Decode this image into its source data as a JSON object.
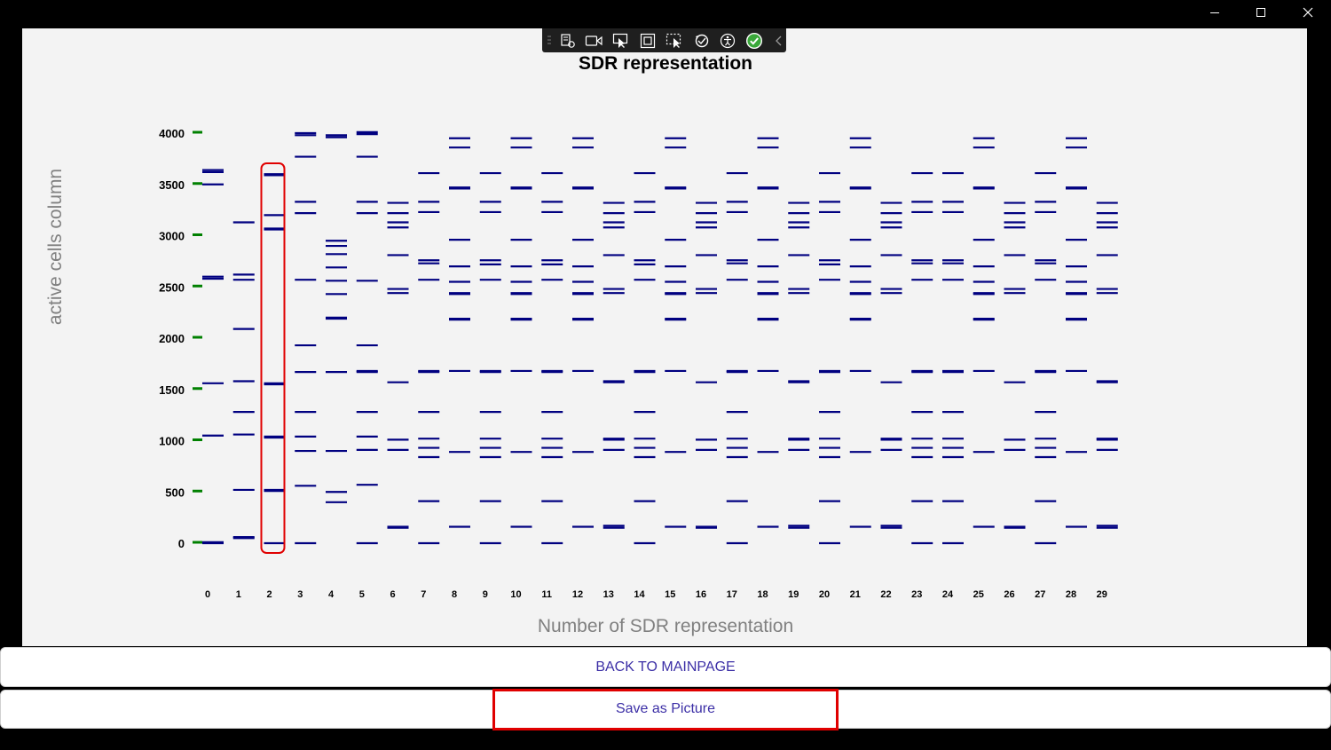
{
  "window": {
    "controls": [
      "minimize-icon",
      "maximize-icon",
      "close-icon"
    ]
  },
  "toolbar": {
    "icons": [
      "live-visual-tree-icon",
      "record-icon",
      "select-element-icon",
      "display-layout-adorners-icon",
      "track-focus-icon",
      "hot-reload-icon",
      "accessibility-icon",
      "check-icon",
      "collapse-chevron-icon"
    ],
    "check_color": "#3aa83a"
  },
  "chart_data": {
    "type": "scatter",
    "title": "SDR representation",
    "xlabel": "Number of SDR representation",
    "ylabel": "active cells column",
    "x_ticks": [
      0,
      1,
      2,
      3,
      4,
      5,
      6,
      7,
      8,
      9,
      10,
      11,
      12,
      13,
      14,
      15,
      16,
      17,
      18,
      19,
      20,
      21,
      22,
      23,
      24,
      25,
      26,
      27,
      28,
      29
    ],
    "y_ticks": [
      0,
      500,
      1000,
      1500,
      2000,
      2500,
      3000,
      3500,
      4000
    ],
    "ylim": [
      0,
      4000
    ],
    "marker": "horizontal-dash",
    "series_color": "#000080",
    "tick_marker_color": "#008000",
    "highlighted_column": 2,
    "highlight_color": "#e00000",
    "columns": [
      [
        0,
        10,
        1050,
        1560,
        2580,
        2600,
        3500,
        3620,
        3640
      ],
      [
        50,
        60,
        520,
        1060,
        1280,
        1580,
        2090,
        2570,
        2620,
        3130
      ],
      [
        0,
        510,
        520,
        1030,
        1040,
        1550,
        1560,
        3060,
        3070,
        3200,
        3590,
        3600
      ],
      [
        0,
        560,
        900,
        1040,
        1280,
        1670,
        1930,
        2570,
        3220,
        3330,
        3770,
        3980,
        4000
      ],
      [
        400,
        500,
        900,
        1670,
        2190,
        2200,
        2430,
        2560,
        2690,
        2820,
        2900,
        2950,
        3960,
        3980
      ],
      [
        0,
        570,
        910,
        1040,
        1280,
        1670,
        1680,
        1930,
        2560,
        3220,
        3330,
        3770,
        3990,
        4010
      ],
      [
        150,
        160,
        910,
        1010,
        1570,
        2440,
        2480,
        2810,
        3080,
        3130,
        3220,
        3320
      ],
      [
        0,
        410,
        840,
        930,
        1020,
        1280,
        1670,
        1680,
        2570,
        2730,
        2760,
        3230,
        3330,
        3610
      ],
      [
        160,
        890,
        1680,
        2180,
        2190,
        2430,
        2440,
        2550,
        2700,
        2960,
        3460,
        3470,
        3860,
        3950
      ],
      [
        0,
        410,
        840,
        930,
        1020,
        1280,
        1670,
        1680,
        2570,
        2720,
        2760,
        3230,
        3330,
        3610
      ],
      [
        160,
        890,
        1680,
        2180,
        2190,
        2430,
        2440,
        2550,
        2700,
        2960,
        3460,
        3470,
        3860,
        3950
      ],
      [
        0,
        410,
        840,
        930,
        1020,
        1280,
        1670,
        1680,
        2570,
        2720,
        2760,
        3230,
        3330,
        3610
      ],
      [
        160,
        890,
        1680,
        2180,
        2190,
        2430,
        2440,
        2550,
        2700,
        2960,
        3460,
        3470,
        3860,
        3950
      ],
      [
        150,
        170,
        910,
        1010,
        1020,
        1570,
        1580,
        2440,
        2480,
        2810,
        3080,
        3130,
        3220,
        3320
      ],
      [
        0,
        410,
        840,
        930,
        1020,
        1280,
        1670,
        1680,
        2570,
        2720,
        2760,
        3230,
        3330,
        3610
      ],
      [
        160,
        890,
        1680,
        2180,
        2190,
        2430,
        2440,
        2550,
        2700,
        2960,
        3460,
        3470,
        3860,
        3950
      ],
      [
        150,
        160,
        910,
        1010,
        1570,
        2440,
        2480,
        2810,
        3080,
        3130,
        3220,
        3320
      ],
      [
        0,
        410,
        840,
        930,
        1020,
        1280,
        1670,
        1680,
        2570,
        2730,
        2760,
        3230,
        3330,
        3610
      ],
      [
        160,
        890,
        1680,
        2180,
        2190,
        2430,
        2440,
        2550,
        2700,
        2960,
        3460,
        3470,
        3860,
        3950
      ],
      [
        150,
        170,
        910,
        1010,
        1020,
        1570,
        1580,
        2440,
        2480,
        2810,
        3080,
        3130,
        3220,
        3320
      ],
      [
        0,
        410,
        840,
        930,
        1020,
        1280,
        1670,
        1680,
        2570,
        2720,
        2760,
        3230,
        3330,
        3610
      ],
      [
        160,
        890,
        1680,
        2180,
        2190,
        2430,
        2440,
        2550,
        2700,
        2960,
        3460,
        3470,
        3860,
        3950
      ],
      [
        150,
        170,
        910,
        1010,
        1020,
        1570,
        2440,
        2480,
        2810,
        3080,
        3130,
        3220,
        3320
      ],
      [
        0,
        410,
        840,
        930,
        1020,
        1280,
        1670,
        1680,
        2570,
        2730,
        2760,
        3230,
        3330,
        3610
      ],
      [
        0,
        410,
        840,
        930,
        1020,
        1280,
        1670,
        1680,
        2570,
        2730,
        2760,
        3230,
        3330,
        3610
      ],
      [
        160,
        890,
        1680,
        2180,
        2190,
        2430,
        2440,
        2550,
        2700,
        2960,
        3460,
        3470,
        3860,
        3950
      ],
      [
        150,
        160,
        910,
        1010,
        1570,
        2440,
        2480,
        2810,
        3080,
        3130,
        3220,
        3320
      ],
      [
        0,
        410,
        840,
        930,
        1020,
        1280,
        1670,
        1680,
        2570,
        2730,
        2760,
        3230,
        3330,
        3610
      ],
      [
        160,
        890,
        1680,
        2180,
        2190,
        2430,
        2440,
        2550,
        2700,
        2960,
        3460,
        3470,
        3860,
        3950
      ],
      [
        150,
        170,
        910,
        1010,
        1020,
        1570,
        1580,
        2440,
        2480,
        2810,
        3080,
        3130,
        3220,
        3320
      ]
    ]
  },
  "buttons": {
    "back_label": "BACK TO MAINPAGE",
    "save_label": "Save as Picture",
    "highlight_color": "#e00000"
  }
}
